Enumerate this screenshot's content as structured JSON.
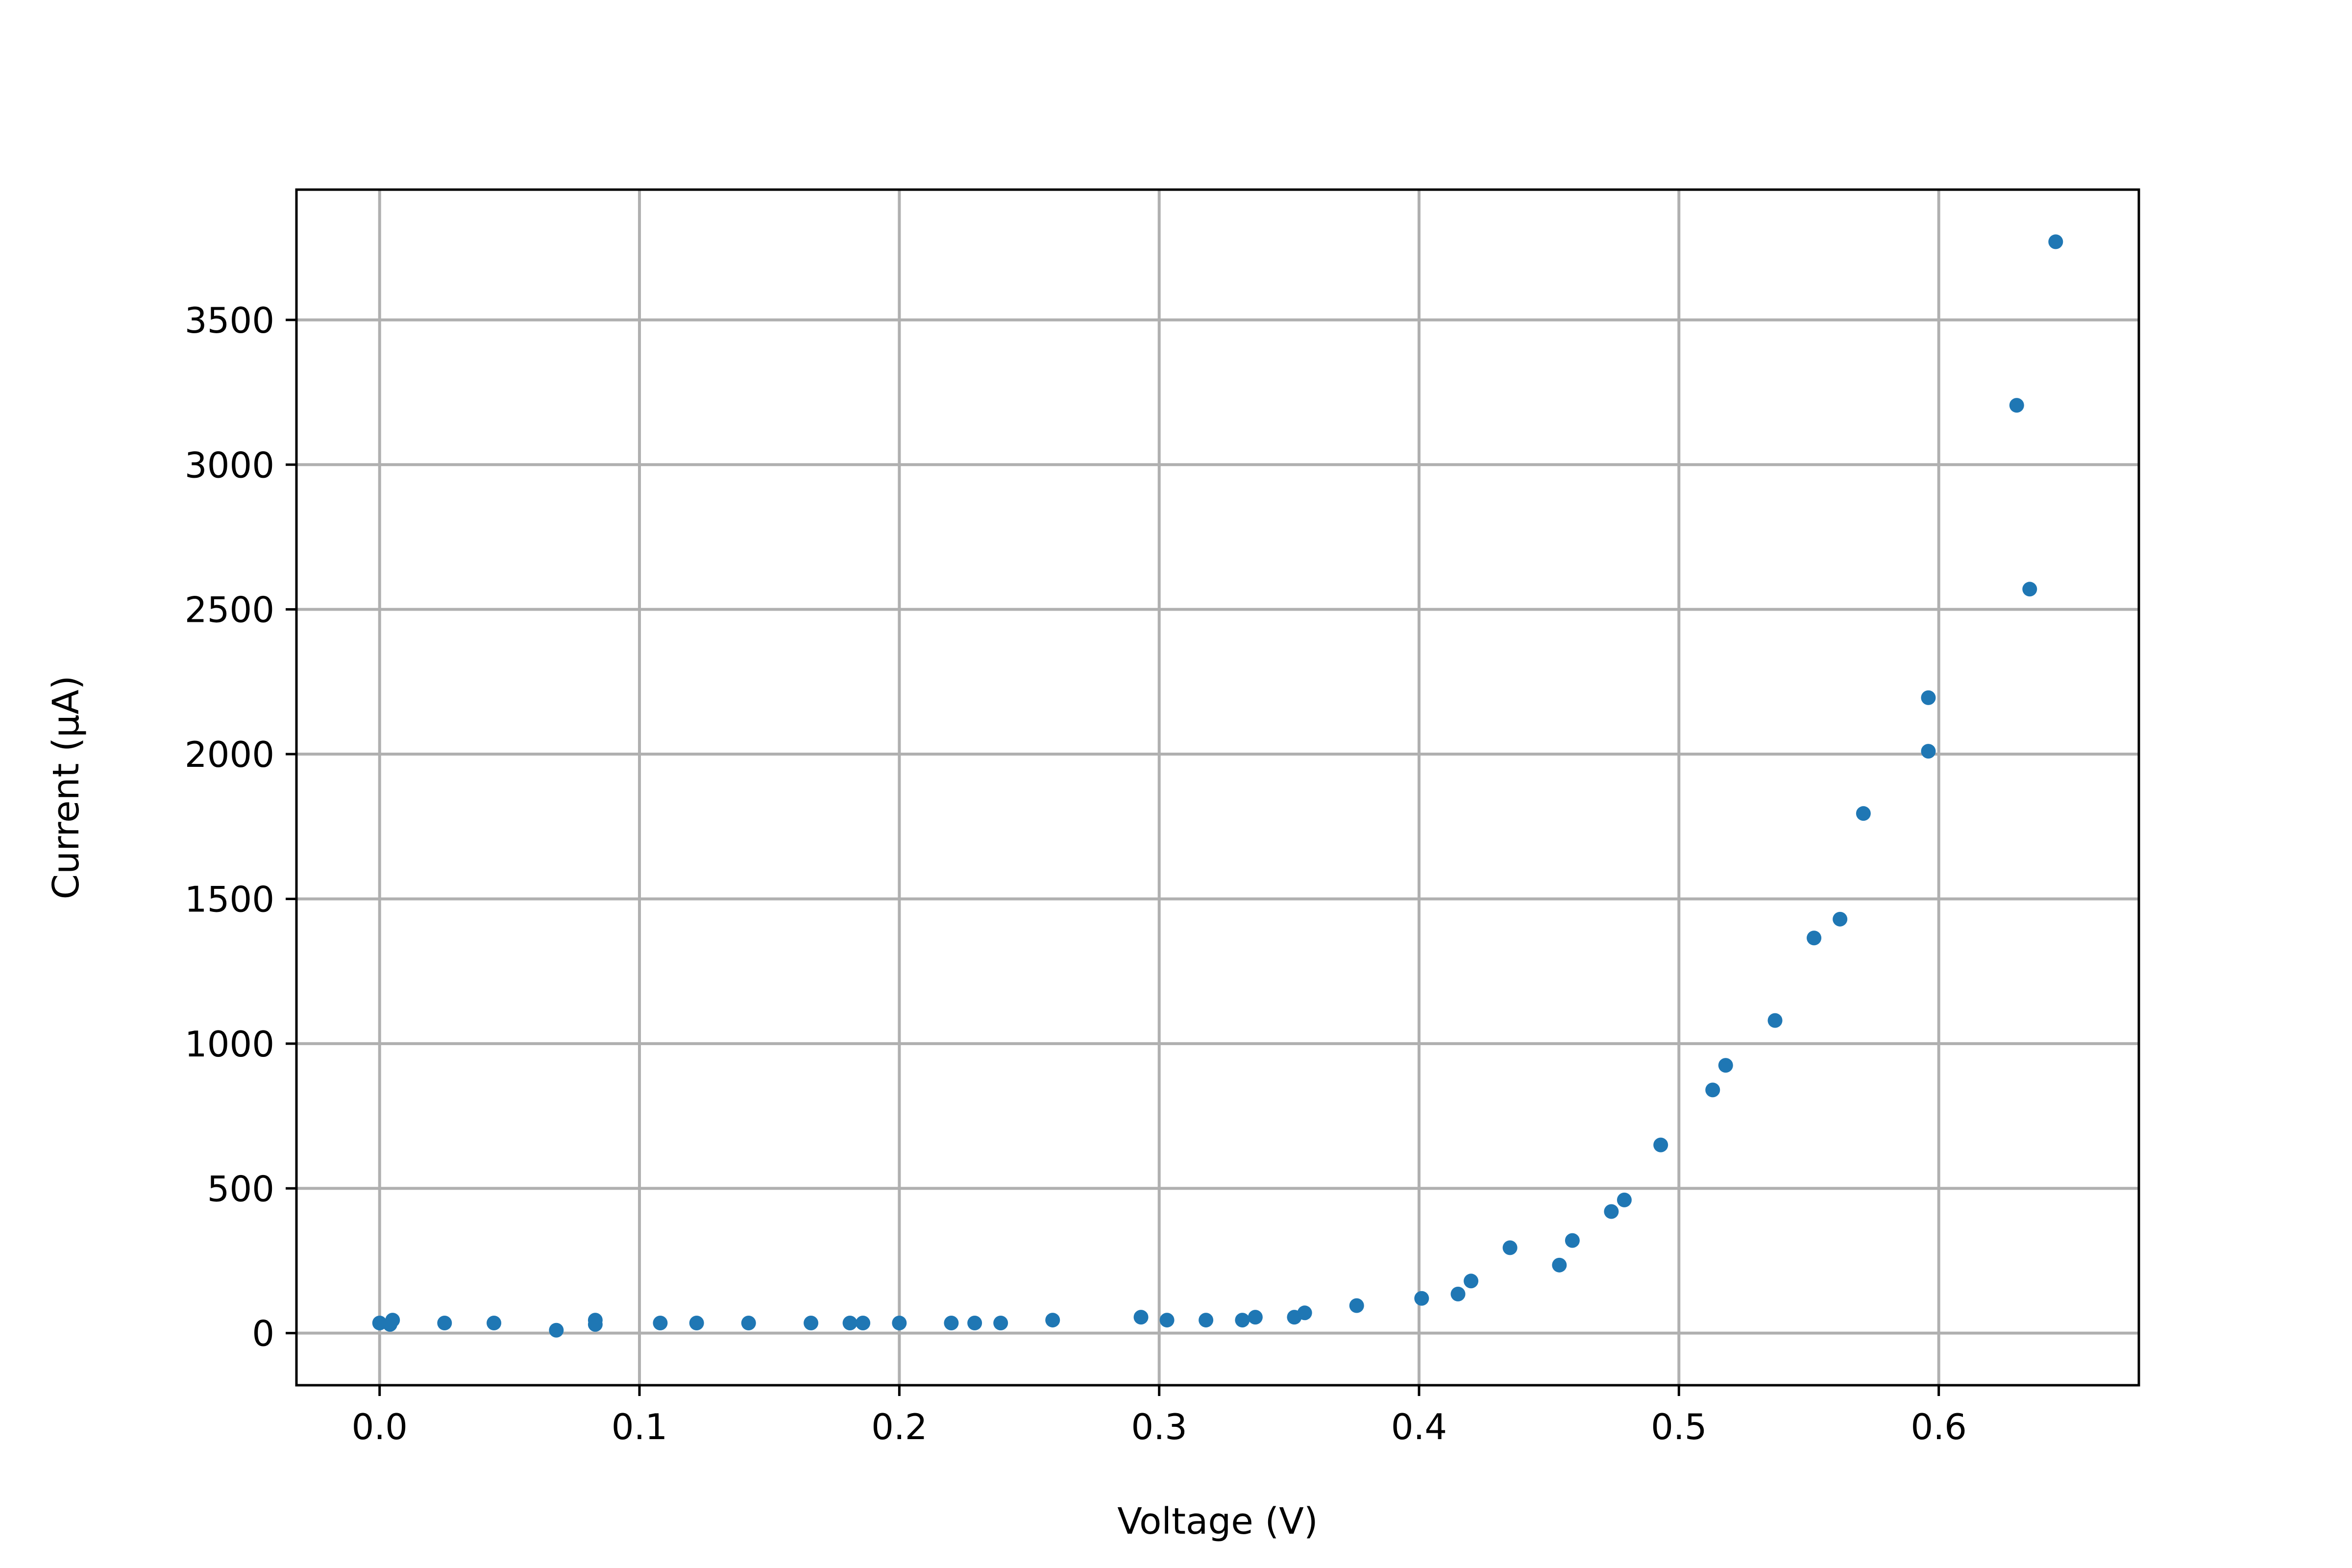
{
  "chart_data": {
    "type": "scatter",
    "title": "",
    "xlabel": "Voltage (V)",
    "ylabel": "Current (μA)",
    "xlim": [
      -0.032,
      0.677
    ],
    "ylim": [
      -180,
      3950
    ],
    "xticks": [
      0.0,
      0.1,
      0.2,
      0.3,
      0.4,
      0.5,
      0.6
    ],
    "xtick_labels": [
      "0.0",
      "0.1",
      "0.2",
      "0.3",
      "0.4",
      "0.5",
      "0.6"
    ],
    "yticks": [
      0,
      500,
      1000,
      1500,
      2000,
      2500,
      3000,
      3500
    ],
    "ytick_labels": [
      "0",
      "500",
      "1000",
      "1500",
      "2000",
      "2500",
      "3000",
      "3500"
    ],
    "grid": true,
    "marker_color": "#1f77b4",
    "series": [
      {
        "points": [
          [
            0.0,
            35
          ],
          [
            0.004,
            30
          ],
          [
            0.005,
            45
          ],
          [
            0.025,
            35
          ],
          [
            0.044,
            35
          ],
          [
            0.068,
            10
          ],
          [
            0.083,
            30
          ],
          [
            0.083,
            45
          ],
          [
            0.108,
            35
          ],
          [
            0.122,
            35
          ],
          [
            0.142,
            35
          ],
          [
            0.166,
            35
          ],
          [
            0.181,
            35
          ],
          [
            0.186,
            35
          ],
          [
            0.2,
            35
          ],
          [
            0.22,
            35
          ],
          [
            0.229,
            35
          ],
          [
            0.239,
            35
          ],
          [
            0.259,
            45
          ],
          [
            0.293,
            55
          ],
          [
            0.303,
            45
          ],
          [
            0.318,
            45
          ],
          [
            0.332,
            45
          ],
          [
            0.337,
            55
          ],
          [
            0.352,
            55
          ],
          [
            0.356,
            70
          ],
          [
            0.376,
            95
          ],
          [
            0.401,
            120
          ],
          [
            0.415,
            135
          ],
          [
            0.42,
            180
          ],
          [
            0.435,
            295
          ],
          [
            0.454,
            235
          ],
          [
            0.459,
            320
          ],
          [
            0.474,
            420
          ],
          [
            0.479,
            460
          ],
          [
            0.493,
            650
          ],
          [
            0.513,
            840
          ],
          [
            0.518,
            925
          ],
          [
            0.537,
            1080
          ],
          [
            0.552,
            1365
          ],
          [
            0.562,
            1430
          ],
          [
            0.571,
            1795
          ],
          [
            0.596,
            2195
          ],
          [
            0.596,
            2010
          ],
          [
            0.63,
            3205
          ],
          [
            0.635,
            2570
          ],
          [
            0.645,
            3770
          ]
        ]
      }
    ]
  }
}
